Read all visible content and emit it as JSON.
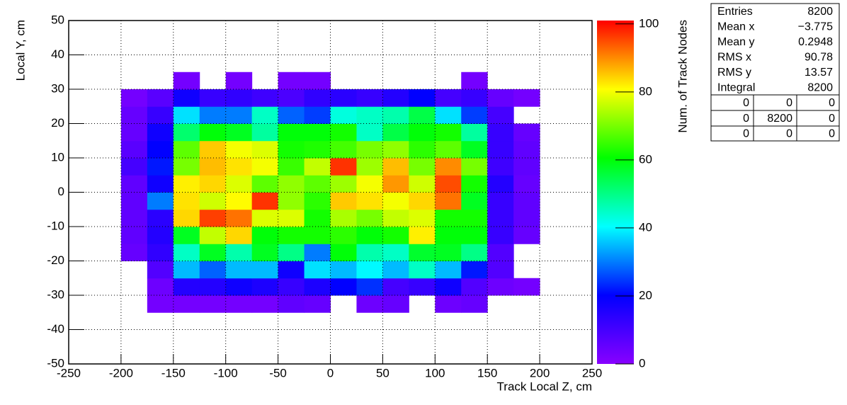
{
  "chart_data": {
    "type": "heatmap",
    "x_label": "Track Local Z, cm",
    "y_label": "Local Y, cm",
    "z_label": "Num. of Track Nodes",
    "xlim": [
      -250,
      250
    ],
    "ylim": [
      -50,
      50
    ],
    "zlim": [
      0,
      101
    ],
    "xticks": [
      -250,
      -200,
      -150,
      -100,
      -50,
      0,
      50,
      100,
      150,
      200,
      250
    ],
    "yticks": [
      -50,
      -40,
      -30,
      -20,
      -10,
      0,
      10,
      20,
      30,
      40,
      50
    ],
    "zticks": [
      0,
      20,
      40,
      60,
      80,
      100
    ],
    "grid": true,
    "colormap": [
      "#8800ff",
      "#0000ff",
      "#00ffff",
      "#00ff00",
      "#ffff00",
      "#ff0000"
    ],
    "xbins": [
      -200,
      -175,
      -150,
      -125,
      -100,
      -75,
      -50,
      -25,
      0,
      25,
      50,
      75,
      100,
      125,
      150,
      175,
      200
    ],
    "ybins": [
      -35,
      -30,
      -25,
      -20,
      -15,
      -10,
      -5,
      0,
      5,
      10,
      15,
      20,
      25,
      30,
      35
    ],
    "z": [
      [
        null,
        3,
        3,
        3,
        3,
        3,
        6,
        5,
        null,
        4,
        5,
        null,
        4,
        5,
        null,
        null
      ],
      [
        null,
        4,
        15,
        15,
        18,
        16,
        12,
        16,
        20,
        24,
        10,
        12,
        18,
        8,
        4,
        3
      ],
      [
        null,
        8,
        35,
        28,
        35,
        35,
        18,
        38,
        35,
        40,
        35,
        45,
        35,
        22,
        8,
        null
      ],
      [
        5,
        13,
        45,
        58,
        47,
        58,
        50,
        30,
        60,
        47,
        45,
        57,
        58,
        50,
        8,
        null
      ],
      [
        6,
        15,
        58,
        76,
        84,
        60,
        62,
        62,
        64,
        60,
        62,
        82,
        60,
        60,
        12,
        5
      ],
      [
        6,
        14,
        84,
        96,
        92,
        78,
        78,
        62,
        74,
        70,
        76,
        78,
        62,
        62,
        12,
        6
      ],
      [
        6,
        30,
        83,
        77,
        81,
        97,
        72,
        64,
        85,
        83,
        80,
        84,
        92,
        58,
        12,
        6
      ],
      [
        6,
        18,
        82,
        84,
        78,
        68,
        72,
        68,
        73,
        80,
        89,
        77,
        95,
        62,
        15,
        5
      ],
      [
        10,
        22,
        70,
        86,
        83,
        80,
        65,
        76,
        97,
        73,
        86,
        70,
        90,
        70,
        11,
        6
      ],
      [
        7,
        20,
        68,
        85,
        80,
        78,
        62,
        63,
        66,
        70,
        72,
        64,
        68,
        58,
        12,
        6
      ],
      [
        5,
        18,
        52,
        60,
        58,
        48,
        60,
        60,
        62,
        45,
        55,
        60,
        62,
        48,
        12,
        5
      ],
      [
        5,
        12,
        38,
        30,
        30,
        45,
        28,
        25,
        43,
        45,
        47,
        55,
        38,
        25,
        10,
        null
      ],
      [
        3,
        7,
        18,
        12,
        13,
        11,
        9,
        13,
        14,
        12,
        15,
        20,
        10,
        12,
        5,
        3
      ],
      [
        null,
        null,
        3,
        null,
        3,
        null,
        3,
        3,
        null,
        null,
        null,
        null,
        null,
        3,
        null,
        null
      ]
    ],
    "stats": {
      "rows": [
        {
          "label": "Entries",
          "value": "8200"
        },
        {
          "label": "Mean x",
          "value": "−3.775"
        },
        {
          "label": "Mean y",
          "value": "0.2948"
        },
        {
          "label": "RMS x",
          "value": "90.78"
        },
        {
          "label": "RMS y",
          "value": "13.57"
        },
        {
          "label": "Integral",
          "value": "8200"
        }
      ],
      "overflow": [
        [
          0,
          0,
          0
        ],
        [
          0,
          8200,
          0
        ],
        [
          0,
          0,
          0
        ]
      ]
    }
  }
}
